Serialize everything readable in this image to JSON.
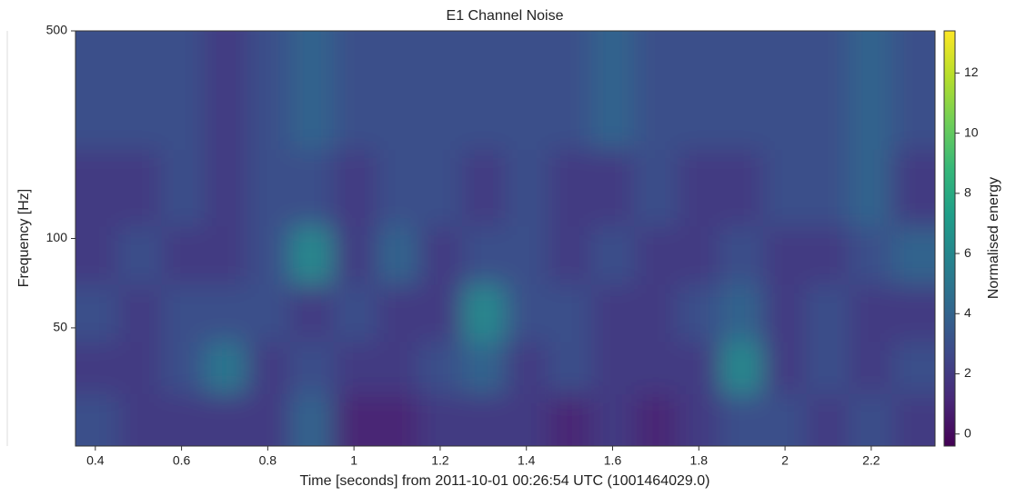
{
  "chart_data": {
    "type": "heatmap",
    "title": "E1 Channel Noise",
    "x_label": "Time [seconds] from 2011-10-01 00:26:54 UTC (1001464029.0)",
    "y_label": "Frequency [Hz]",
    "colorbar_label": "Normalised energy",
    "colormap": "viridis",
    "xlim": [
      0.354,
      2.348
    ],
    "xticks": [
      0.4,
      0.6,
      0.8,
      1,
      1.2,
      1.4,
      1.6,
      1.8,
      2,
      2.2
    ],
    "ylim": [
      20,
      500
    ],
    "yticks": [
      50,
      100,
      500
    ],
    "y_scale": "log",
    "clim": [
      -0.4,
      13.4
    ],
    "cticks": [
      0,
      2,
      4,
      6,
      8,
      10,
      12
    ],
    "x_edges": [
      0.354,
      0.454,
      0.553,
      0.653,
      0.753,
      0.852,
      0.952,
      1.052,
      1.151,
      1.251,
      1.351,
      1.451,
      1.55,
      1.65,
      1.75,
      1.849,
      1.949,
      2.049,
      2.148,
      2.248,
      2.348
    ],
    "y_edges": [
      20,
      30,
      45,
      70,
      110,
      200,
      500
    ],
    "z": [
      [
        3,
        2,
        2,
        2,
        2,
        4,
        1,
        1,
        2,
        2,
        2,
        1,
        2,
        1,
        2,
        3,
        3,
        2,
        3,
        2
      ],
      [
        2,
        2,
        3,
        5,
        2,
        3,
        2,
        2,
        3,
        4,
        2,
        3,
        2,
        2,
        2,
        6,
        2,
        3,
        2,
        3
      ],
      [
        3,
        2,
        3,
        3,
        3,
        2,
        3,
        2,
        2,
        6,
        3,
        3,
        2,
        2,
        3,
        4,
        2,
        3,
        2,
        2
      ],
      [
        2,
        3,
        2,
        2,
        3,
        6,
        2,
        4,
        2,
        3,
        3,
        2,
        3,
        2,
        2,
        3,
        2,
        2,
        3,
        4
      ],
      [
        2,
        2,
        3,
        2,
        3,
        3,
        2,
        3,
        3,
        2,
        3,
        2,
        2,
        3,
        2,
        2,
        3,
        3,
        4,
        2
      ],
      [
        3,
        3,
        3,
        2,
        3,
        4,
        3,
        3,
        3,
        3,
        3,
        3,
        4,
        3,
        3,
        3,
        3,
        3,
        4,
        3
      ]
    ]
  }
}
